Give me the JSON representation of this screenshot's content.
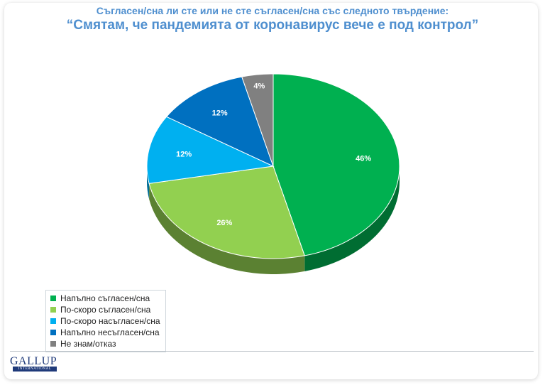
{
  "header": {
    "question": "Съгласен/сна ли сте или не сте съгласен/сна със следното твърдение:",
    "statement": "“Смятам, че пандемията от коронавирус вече е под контрол”"
  },
  "chart_data": {
    "type": "pie",
    "categories": [
      "Напълно съгласен/сна",
      "По-скоро съгласен/сна",
      "По-скоро насъгласен/сна",
      "Напълно несъгласен/сна",
      "Не знам/отказ"
    ],
    "values": [
      46,
      26,
      12,
      12,
      4
    ],
    "data_labels": [
      "46%",
      "26%",
      "12%",
      "12%",
      "4%"
    ],
    "colors": [
      "#00b050",
      "#92d050",
      "#00b0f0",
      "#0070c0",
      "#808080"
    ],
    "legend_position": "bottom-left",
    "style": "3d"
  },
  "logo": {
    "name": "GALLUP",
    "sub": "INTERNATIONAL"
  }
}
